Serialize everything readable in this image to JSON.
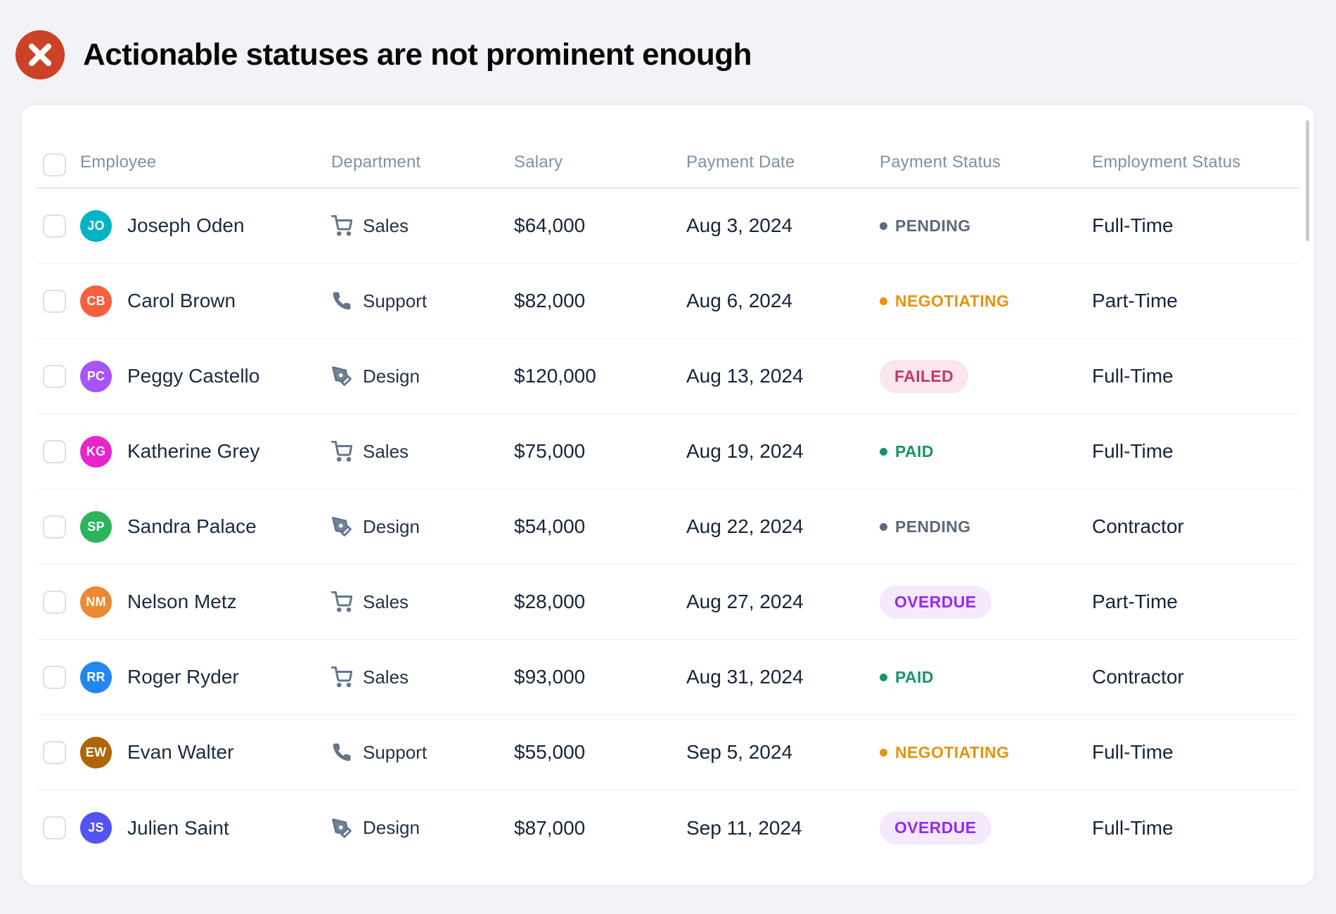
{
  "header": {
    "title": "Actionable statuses are not prominent enough",
    "icon": "x-circle-icon",
    "icon_color": "#cb4227"
  },
  "table": {
    "columns": [
      "Employee",
      "Department",
      "Salary",
      "Payment Date",
      "Payment Status",
      "Employment Status"
    ],
    "rows": [
      {
        "initials": "JO",
        "avatar_color": "#00b4c5",
        "name": "Joseph Oden",
        "department": "Sales",
        "dept_icon": "cart-icon",
        "salary": "$64,000",
        "payment_date": "Aug 3, 2024",
        "payment_status": "PENDING",
        "employment": "Full-Time"
      },
      {
        "initials": "CB",
        "avatar_color": "#fa5f3d",
        "name": "Carol Brown",
        "department": "Support",
        "dept_icon": "phone-icon",
        "salary": "$82,000",
        "payment_date": "Aug 6, 2024",
        "payment_status": "NEGOTIATING",
        "employment": "Part-Time"
      },
      {
        "initials": "PC",
        "avatar_color": "#a656f5",
        "name": "Peggy Castello",
        "department": "Design",
        "dept_icon": "pen-tool-icon",
        "salary": "$120,000",
        "payment_date": "Aug 13, 2024",
        "payment_status": "FAILED",
        "employment": "Full-Time"
      },
      {
        "initials": "KG",
        "avatar_color": "#e824cb",
        "name": "Katherine Grey",
        "department": "Sales",
        "dept_icon": "cart-icon",
        "salary": "$75,000",
        "payment_date": "Aug 19, 2024",
        "payment_status": "PAID",
        "employment": "Full-Time"
      },
      {
        "initials": "SP",
        "avatar_color": "#2cb45d",
        "name": "Sandra Palace",
        "department": "Design",
        "dept_icon": "pen-tool-icon",
        "salary": "$54,000",
        "payment_date": "Aug 22, 2024",
        "payment_status": "PENDING",
        "employment": "Contractor"
      },
      {
        "initials": "NM",
        "avatar_color": "#ee8833",
        "name": "Nelson Metz",
        "department": "Sales",
        "dept_icon": "cart-icon",
        "salary": "$28,000",
        "payment_date": "Aug 27, 2024",
        "payment_status": "OVERDUE",
        "employment": "Part-Time"
      },
      {
        "initials": "RR",
        "avatar_color": "#2287f0",
        "name": "Roger Ryder",
        "department": "Sales",
        "dept_icon": "cart-icon",
        "salary": "$93,000",
        "payment_date": "Aug 31, 2024",
        "payment_status": "PAID",
        "employment": "Contractor"
      },
      {
        "initials": "EW",
        "avatar_color": "#ae6607",
        "name": "Evan Walter",
        "department": "Support",
        "dept_icon": "phone-icon",
        "salary": "$55,000",
        "payment_date": "Sep 5, 2024",
        "payment_status": "NEGOTIATING",
        "employment": "Full-Time"
      },
      {
        "initials": "JS",
        "avatar_color": "#5254f3",
        "name": "Julien Saint",
        "department": "Design",
        "dept_icon": "pen-tool-icon",
        "salary": "$87,000",
        "payment_date": "Sep 11, 2024",
        "payment_status": "OVERDUE",
        "employment": "Full-Time"
      }
    ]
  },
  "status_styles": {
    "PENDING": {
      "style": "dot",
      "color": "#5d6a7d"
    },
    "NEGOTIATING": {
      "style": "dot",
      "color": "#e5930a"
    },
    "PAID": {
      "style": "dot",
      "color": "#1a9464"
    },
    "FAILED": {
      "style": "pill",
      "color": "#c23a60",
      "bg": "#fce5ec"
    },
    "OVERDUE": {
      "style": "pill",
      "color": "#9a27ee",
      "bg": "#f4e9fd"
    }
  },
  "icon_color": "#64748b"
}
